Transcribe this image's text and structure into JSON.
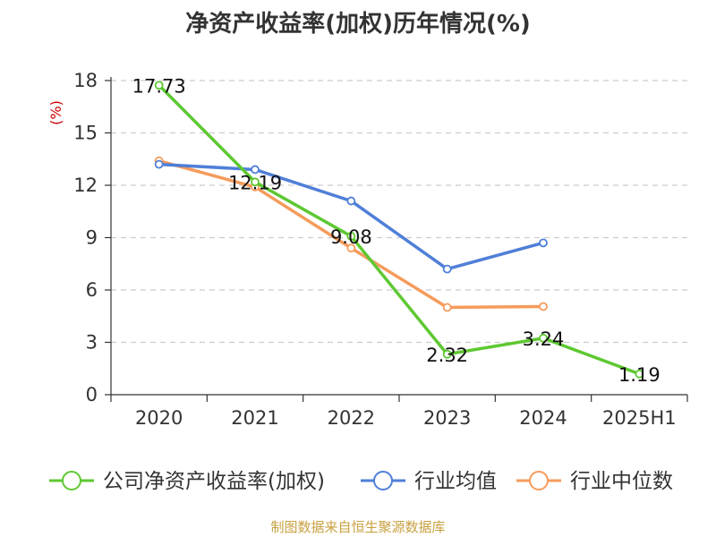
{
  "chart_data": {
    "type": "line",
    "title": "净资产收益率(加权)历年情况(%)",
    "ylabel": "(%)",
    "xlabel": "",
    "categories": [
      "2020",
      "2021",
      "2022",
      "2023",
      "2024",
      "2025H1"
    ],
    "ylim": [
      0,
      18
    ],
    "yticks": [
      0,
      3,
      6,
      9,
      12,
      15,
      18
    ],
    "grid": true,
    "legend_position": "bottom",
    "series": [
      {
        "name": "公司净资产收益率(加权)",
        "color": "#5ec832",
        "values": [
          17.73,
          12.19,
          9.08,
          2.32,
          3.24,
          1.19
        ],
        "labels": [
          "17.73",
          "12.19",
          "9.08",
          "2.32",
          "3.24",
          "1.19"
        ]
      },
      {
        "name": "行业均值",
        "color": "#4f7fd8",
        "values": [
          13.2,
          12.9,
          11.1,
          7.2,
          8.7,
          null
        ]
      },
      {
        "name": "行业中位数",
        "color": "#f59b5b",
        "values": [
          13.4,
          11.9,
          8.4,
          5.0,
          5.05,
          null
        ]
      }
    ]
  },
  "footer": {
    "source": "制图数据来自恒生聚源数据库"
  }
}
